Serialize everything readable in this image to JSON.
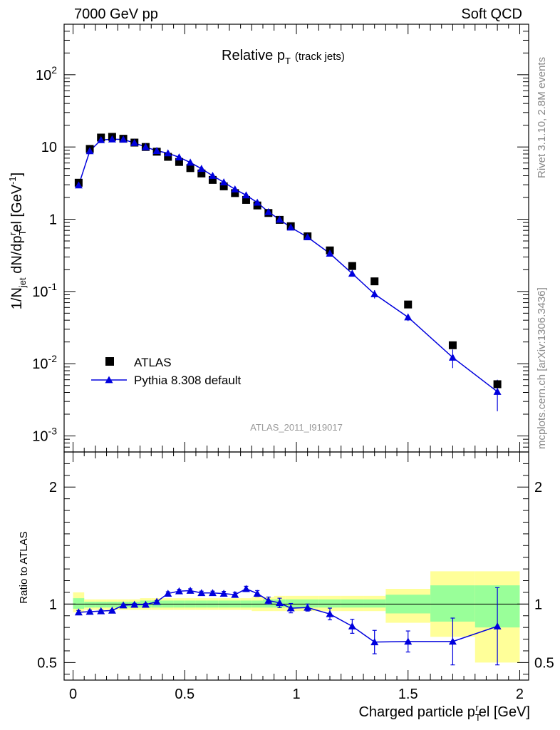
{
  "header": {
    "left": "7000 GeV pp",
    "right": "Soft QCD"
  },
  "side_labels": {
    "rivet": "Rivet 3.1.10,  2.8M events",
    "mcplots": "mcplots.cern.ch [arXiv:1306.3436]"
  },
  "analysis_tag": "ATLAS_2011_I919017",
  "colors": {
    "data": "#000000",
    "mc": "#0000dd",
    "band_inner": "#99ff99",
    "band_outer": "#ffff99",
    "tag": "#999999"
  },
  "chart_data": [
    {
      "type": "scatter",
      "panel": "main",
      "title": "Relative p_T (track jets)",
      "title_parts": {
        "main": "Relative p",
        "sub": "T",
        "extra": "(track jets)"
      },
      "xlabel": "Charged particle p_T^rel [GeV]",
      "ylabel": "1/N_jet dN/dp_T^rel [GeV^-1]",
      "ylabel_parts": {
        "a": "1/N",
        "b": "jet",
        "c": " dN/dp",
        "d": "T",
        "e": "r",
        "f": "el [GeV",
        "g": "-1",
        "h": "]"
      },
      "xlim": [
        -0.04,
        2.04
      ],
      "ylim": [
        0.0006,
        500
      ],
      "yscale": "log",
      "yticks": [
        {
          "label": "10",
          "sup": "-3",
          "value": 0.001
        },
        {
          "label": "10",
          "sup": "-2",
          "value": 0.01
        },
        {
          "label": "10",
          "sup": "-1",
          "value": 0.1
        },
        {
          "label": "1",
          "sup": "",
          "value": 1
        },
        {
          "label": "10",
          "sup": "",
          "value": 10
        },
        {
          "label": "10",
          "sup": "2",
          "value": 100
        }
      ],
      "legend": [
        {
          "name": "ATLAS",
          "marker": "square"
        },
        {
          "name": "Pythia 8.308 default",
          "marker": "triangle"
        }
      ],
      "legend_position": "bottom-left",
      "series": [
        {
          "name": "ATLAS",
          "x": [
            0.025,
            0.075,
            0.125,
            0.175,
            0.225,
            0.275,
            0.325,
            0.375,
            0.425,
            0.475,
            0.525,
            0.575,
            0.625,
            0.675,
            0.725,
            0.775,
            0.825,
            0.875,
            0.925,
            0.975,
            1.05,
            1.15,
            1.25,
            1.35,
            1.5,
            1.7,
            1.9
          ],
          "y": [
            3.2,
            9.4,
            13.5,
            13.8,
            13.0,
            11.5,
            10.0,
            8.6,
            7.3,
            6.2,
            5.1,
            4.3,
            3.5,
            2.85,
            2.3,
            1.85,
            1.55,
            1.22,
            0.98,
            0.8,
            0.58,
            0.37,
            0.225,
            0.138,
            0.066,
            0.018,
            0.0052
          ]
        },
        {
          "name": "Pythia 8.308 default",
          "x": [
            0.025,
            0.075,
            0.125,
            0.175,
            0.225,
            0.275,
            0.325,
            0.375,
            0.425,
            0.475,
            0.525,
            0.575,
            0.625,
            0.675,
            0.725,
            0.775,
            0.825,
            0.875,
            0.925,
            0.975,
            1.05,
            1.15,
            1.25,
            1.35,
            1.5,
            1.7,
            1.9
          ],
          "y": [
            2.95,
            8.8,
            12.5,
            12.8,
            12.7,
            11.4,
            10.0,
            8.85,
            8.2,
            7.2,
            6.1,
            5.0,
            4.0,
            3.25,
            2.6,
            2.15,
            1.7,
            1.26,
            0.99,
            0.77,
            0.565,
            0.335,
            0.177,
            0.092,
            0.044,
            0.0122,
            0.0041
          ],
          "yerr_low": [
            0,
            0,
            0,
            0,
            0,
            0,
            0,
            0,
            0,
            0,
            0,
            0,
            0,
            0,
            0,
            0,
            0,
            0,
            0,
            0,
            0,
            0.02,
            0.012,
            0.012,
            0.005,
            0.0035,
            0.0019
          ],
          "yerr_high": [
            0,
            0,
            0,
            0,
            0,
            0,
            0,
            0,
            0,
            0,
            0,
            0,
            0,
            0,
            0,
            0,
            0,
            0,
            0,
            0,
            0,
            0.02,
            0.012,
            0.012,
            0.005,
            0.0035,
            0.0019
          ]
        }
      ]
    },
    {
      "type": "line",
      "panel": "ratio",
      "ylabel": "Ratio to ATLAS",
      "xlim": [
        -0.04,
        2.04
      ],
      "ylim": [
        0.35,
        2.3
      ],
      "xticks": [
        {
          "label": "0",
          "value": 0
        },
        {
          "label": "0.5",
          "value": 0.5
        },
        {
          "label": "1",
          "value": 1
        },
        {
          "label": "1.5",
          "value": 1.5
        },
        {
          "label": "2",
          "value": 2
        }
      ],
      "yticks": [
        {
          "label": "0.5",
          "value": 0.5
        },
        {
          "label": "1",
          "value": 1
        },
        {
          "label": "2",
          "value": 2
        }
      ],
      "bands": {
        "edges": [
          0.0,
          0.05,
          0.1,
          0.15,
          0.2,
          0.25,
          0.3,
          0.35,
          0.4,
          0.45,
          0.5,
          0.55,
          0.6,
          0.65,
          0.7,
          0.75,
          0.8,
          0.85,
          0.9,
          0.95,
          1.0,
          1.1,
          1.2,
          1.3,
          1.4,
          1.6,
          1.8,
          2.0
        ],
        "inner_low": [
          0.96,
          0.97,
          0.97,
          0.97,
          0.97,
          0.97,
          0.97,
          0.97,
          0.97,
          0.97,
          0.97,
          0.97,
          0.97,
          0.97,
          0.97,
          0.97,
          0.97,
          0.97,
          0.97,
          0.97,
          0.97,
          0.97,
          0.97,
          0.97,
          0.92,
          0.85,
          0.8
        ],
        "inner_high": [
          1.05,
          1.02,
          1.02,
          1.02,
          1.02,
          1.02,
          1.03,
          1.03,
          1.03,
          1.03,
          1.03,
          1.03,
          1.03,
          1.03,
          1.03,
          1.03,
          1.03,
          1.04,
          1.04,
          1.04,
          1.04,
          1.04,
          1.04,
          1.04,
          1.08,
          1.16,
          1.16
        ],
        "outer_low": [
          0.93,
          0.95,
          0.95,
          0.95,
          0.95,
          0.95,
          0.95,
          0.95,
          0.95,
          0.95,
          0.95,
          0.95,
          0.95,
          0.95,
          0.95,
          0.95,
          0.94,
          0.94,
          0.94,
          0.94,
          0.94,
          0.94,
          0.94,
          0.94,
          0.84,
          0.72,
          0.5
        ],
        "outer_high": [
          1.1,
          1.04,
          1.04,
          1.04,
          1.04,
          1.04,
          1.05,
          1.05,
          1.05,
          1.05,
          1.05,
          1.05,
          1.05,
          1.05,
          1.05,
          1.05,
          1.06,
          1.06,
          1.07,
          1.07,
          1.07,
          1.07,
          1.07,
          1.07,
          1.13,
          1.28,
          1.28
        ]
      },
      "series": [
        {
          "name": "Pythia 8.308 default / ATLAS",
          "x": [
            0.025,
            0.075,
            0.125,
            0.175,
            0.225,
            0.275,
            0.325,
            0.375,
            0.425,
            0.475,
            0.525,
            0.575,
            0.625,
            0.675,
            0.725,
            0.775,
            0.825,
            0.875,
            0.925,
            0.975,
            1.05,
            1.15,
            1.25,
            1.35,
            1.5,
            1.7,
            1.9
          ],
          "y": [
            0.93,
            0.935,
            0.94,
            0.945,
            0.99,
            0.995,
            0.995,
            1.02,
            1.09,
            1.11,
            1.115,
            1.095,
            1.095,
            1.09,
            1.08,
            1.13,
            1.09,
            1.03,
            1.01,
            0.965,
            0.97,
            0.915,
            0.81,
            0.675,
            0.68,
            0.68,
            0.81
          ],
          "yerr": [
            0.015,
            0.012,
            0.01,
            0.01,
            0.01,
            0.01,
            0.01,
            0.01,
            0.015,
            0.015,
            0.015,
            0.015,
            0.015,
            0.018,
            0.02,
            0.022,
            0.025,
            0.03,
            0.04,
            0.04,
            0.03,
            0.05,
            0.06,
            0.1,
            0.09,
            0.2,
            0.33
          ]
        }
      ]
    }
  ]
}
